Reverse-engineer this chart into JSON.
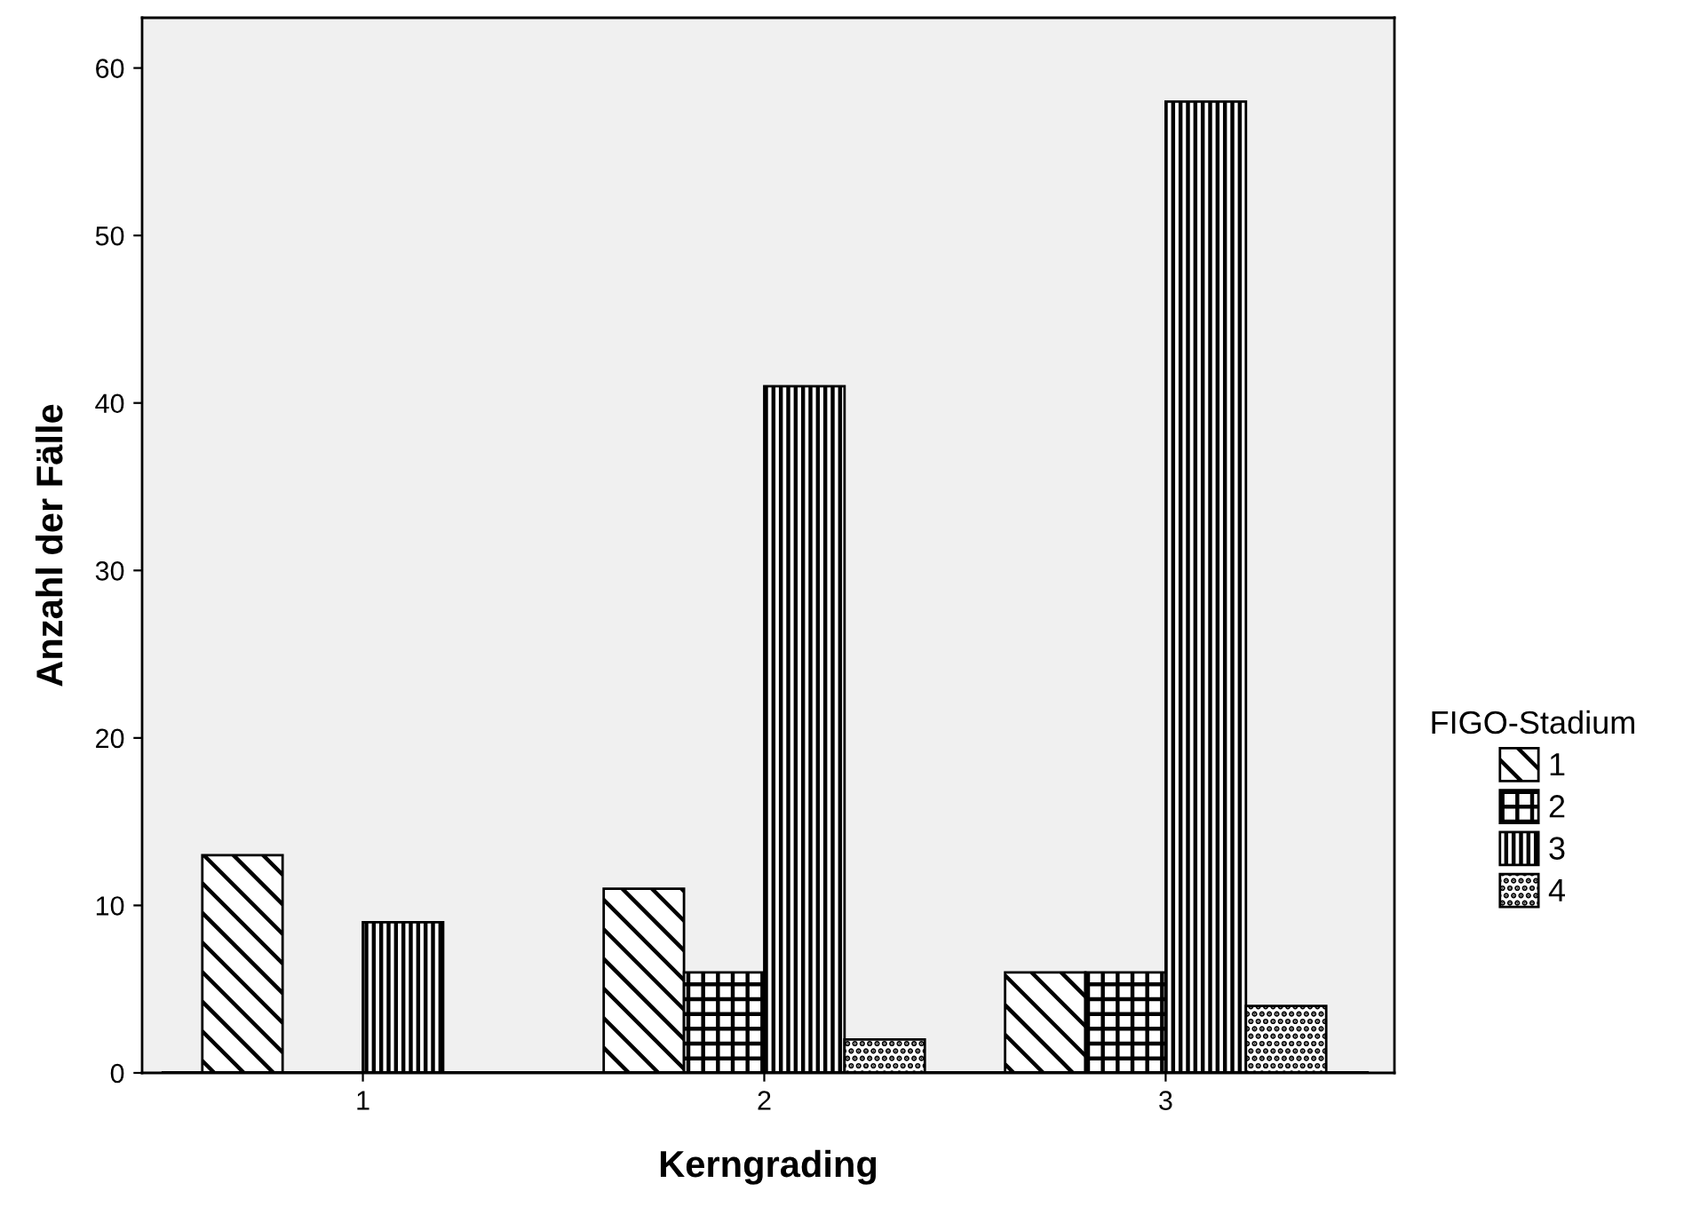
{
  "chart_data": {
    "type": "bar",
    "xlabel": "Kerngrading",
    "ylabel": "Anzahl der Fälle",
    "legend_title": "FIGO-Stadium",
    "legend": "right",
    "grid": false,
    "categories": [
      "1",
      "2",
      "3"
    ],
    "ylim": [
      0,
      63
    ],
    "yticks": [
      0,
      10,
      20,
      30,
      40,
      50,
      60
    ],
    "series": [
      {
        "name": "1",
        "color": "#000000",
        "values": [
          13,
          11,
          6
        ]
      },
      {
        "name": "2",
        "color": "#000000",
        "values": [
          null,
          6,
          6
        ]
      },
      {
        "name": "3",
        "color": "#000000",
        "values": [
          9,
          41,
          58
        ]
      },
      {
        "name": "4",
        "color": "#000000",
        "values": [
          null,
          2,
          4
        ]
      }
    ]
  }
}
